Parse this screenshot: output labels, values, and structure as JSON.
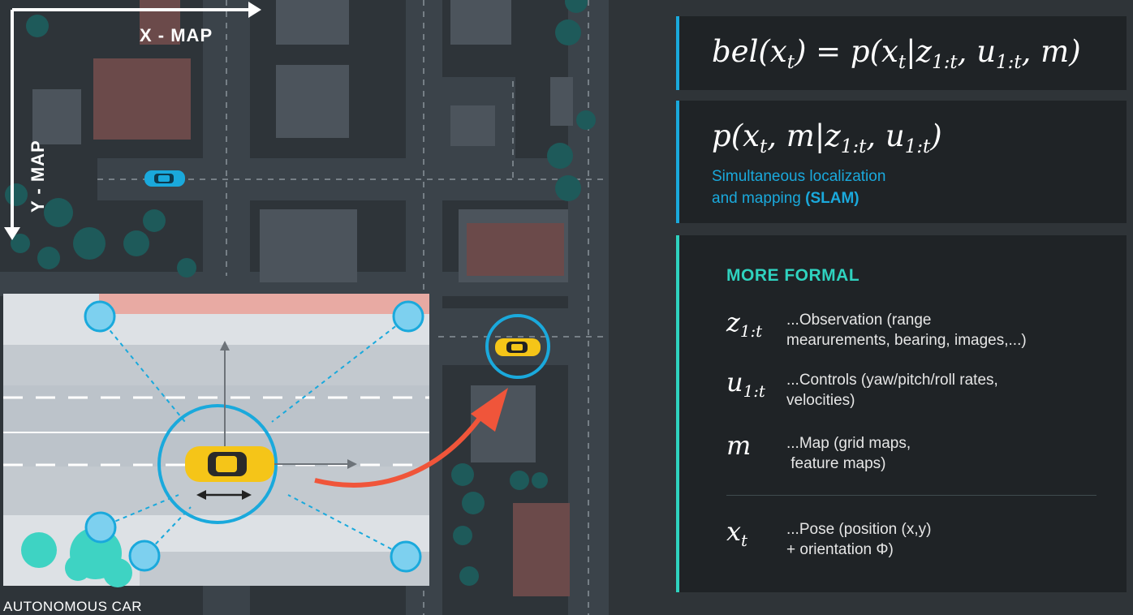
{
  "map": {
    "x_axis_label": "X - MAP",
    "y_axis_label": "Y - MAP",
    "footer_label": "AUTONOMOUS CAR"
  },
  "formulas": {
    "belief": {
      "fn": "bel",
      "var": "x",
      "var_sub": "t",
      "rhs_fn": "p",
      "obs": "z",
      "obs_sub": "1:t",
      "ctrl": "u",
      "ctrl_sub": "1:t",
      "map": "m"
    },
    "slam": {
      "fn": "p",
      "var": "x",
      "var_sub": "t",
      "map": "m",
      "obs": "z",
      "obs_sub": "1:t",
      "ctrl": "u",
      "ctrl_sub": "1:t",
      "caption_line1": "Simultaneous localization",
      "caption_line2_prefix": "and mapping ",
      "caption_line2_bold": "(SLAM)"
    }
  },
  "formal": {
    "heading": "MORE FORMAL",
    "items": [
      {
        "sym": "z",
        "sub": "1:t",
        "text": "...Observation (range\nmearurements, bearing, images,...)"
      },
      {
        "sym": "u",
        "sub": "1:t",
        "text": "...Controls (yaw/pitch/roll rates,\nvelocities)"
      },
      {
        "sym": "m",
        "sub": "",
        "text": "...Map (grid maps,\n feature maps)"
      },
      {
        "sym": "x",
        "sub": "t",
        "text": "...Pose (position (x,y)\n+ orientation Φ)"
      }
    ]
  },
  "colors": {
    "accent_blue": "#1aa9dc",
    "accent_teal": "#2fd2bf",
    "arrow_red": "#f0553a",
    "car_yellow": "#f5c518",
    "panel_bg": "#1f2326"
  },
  "icons": [
    "car-icon",
    "landmark-icon",
    "tree-icon",
    "axis-arrow-icon",
    "curved-arrow-icon"
  ]
}
